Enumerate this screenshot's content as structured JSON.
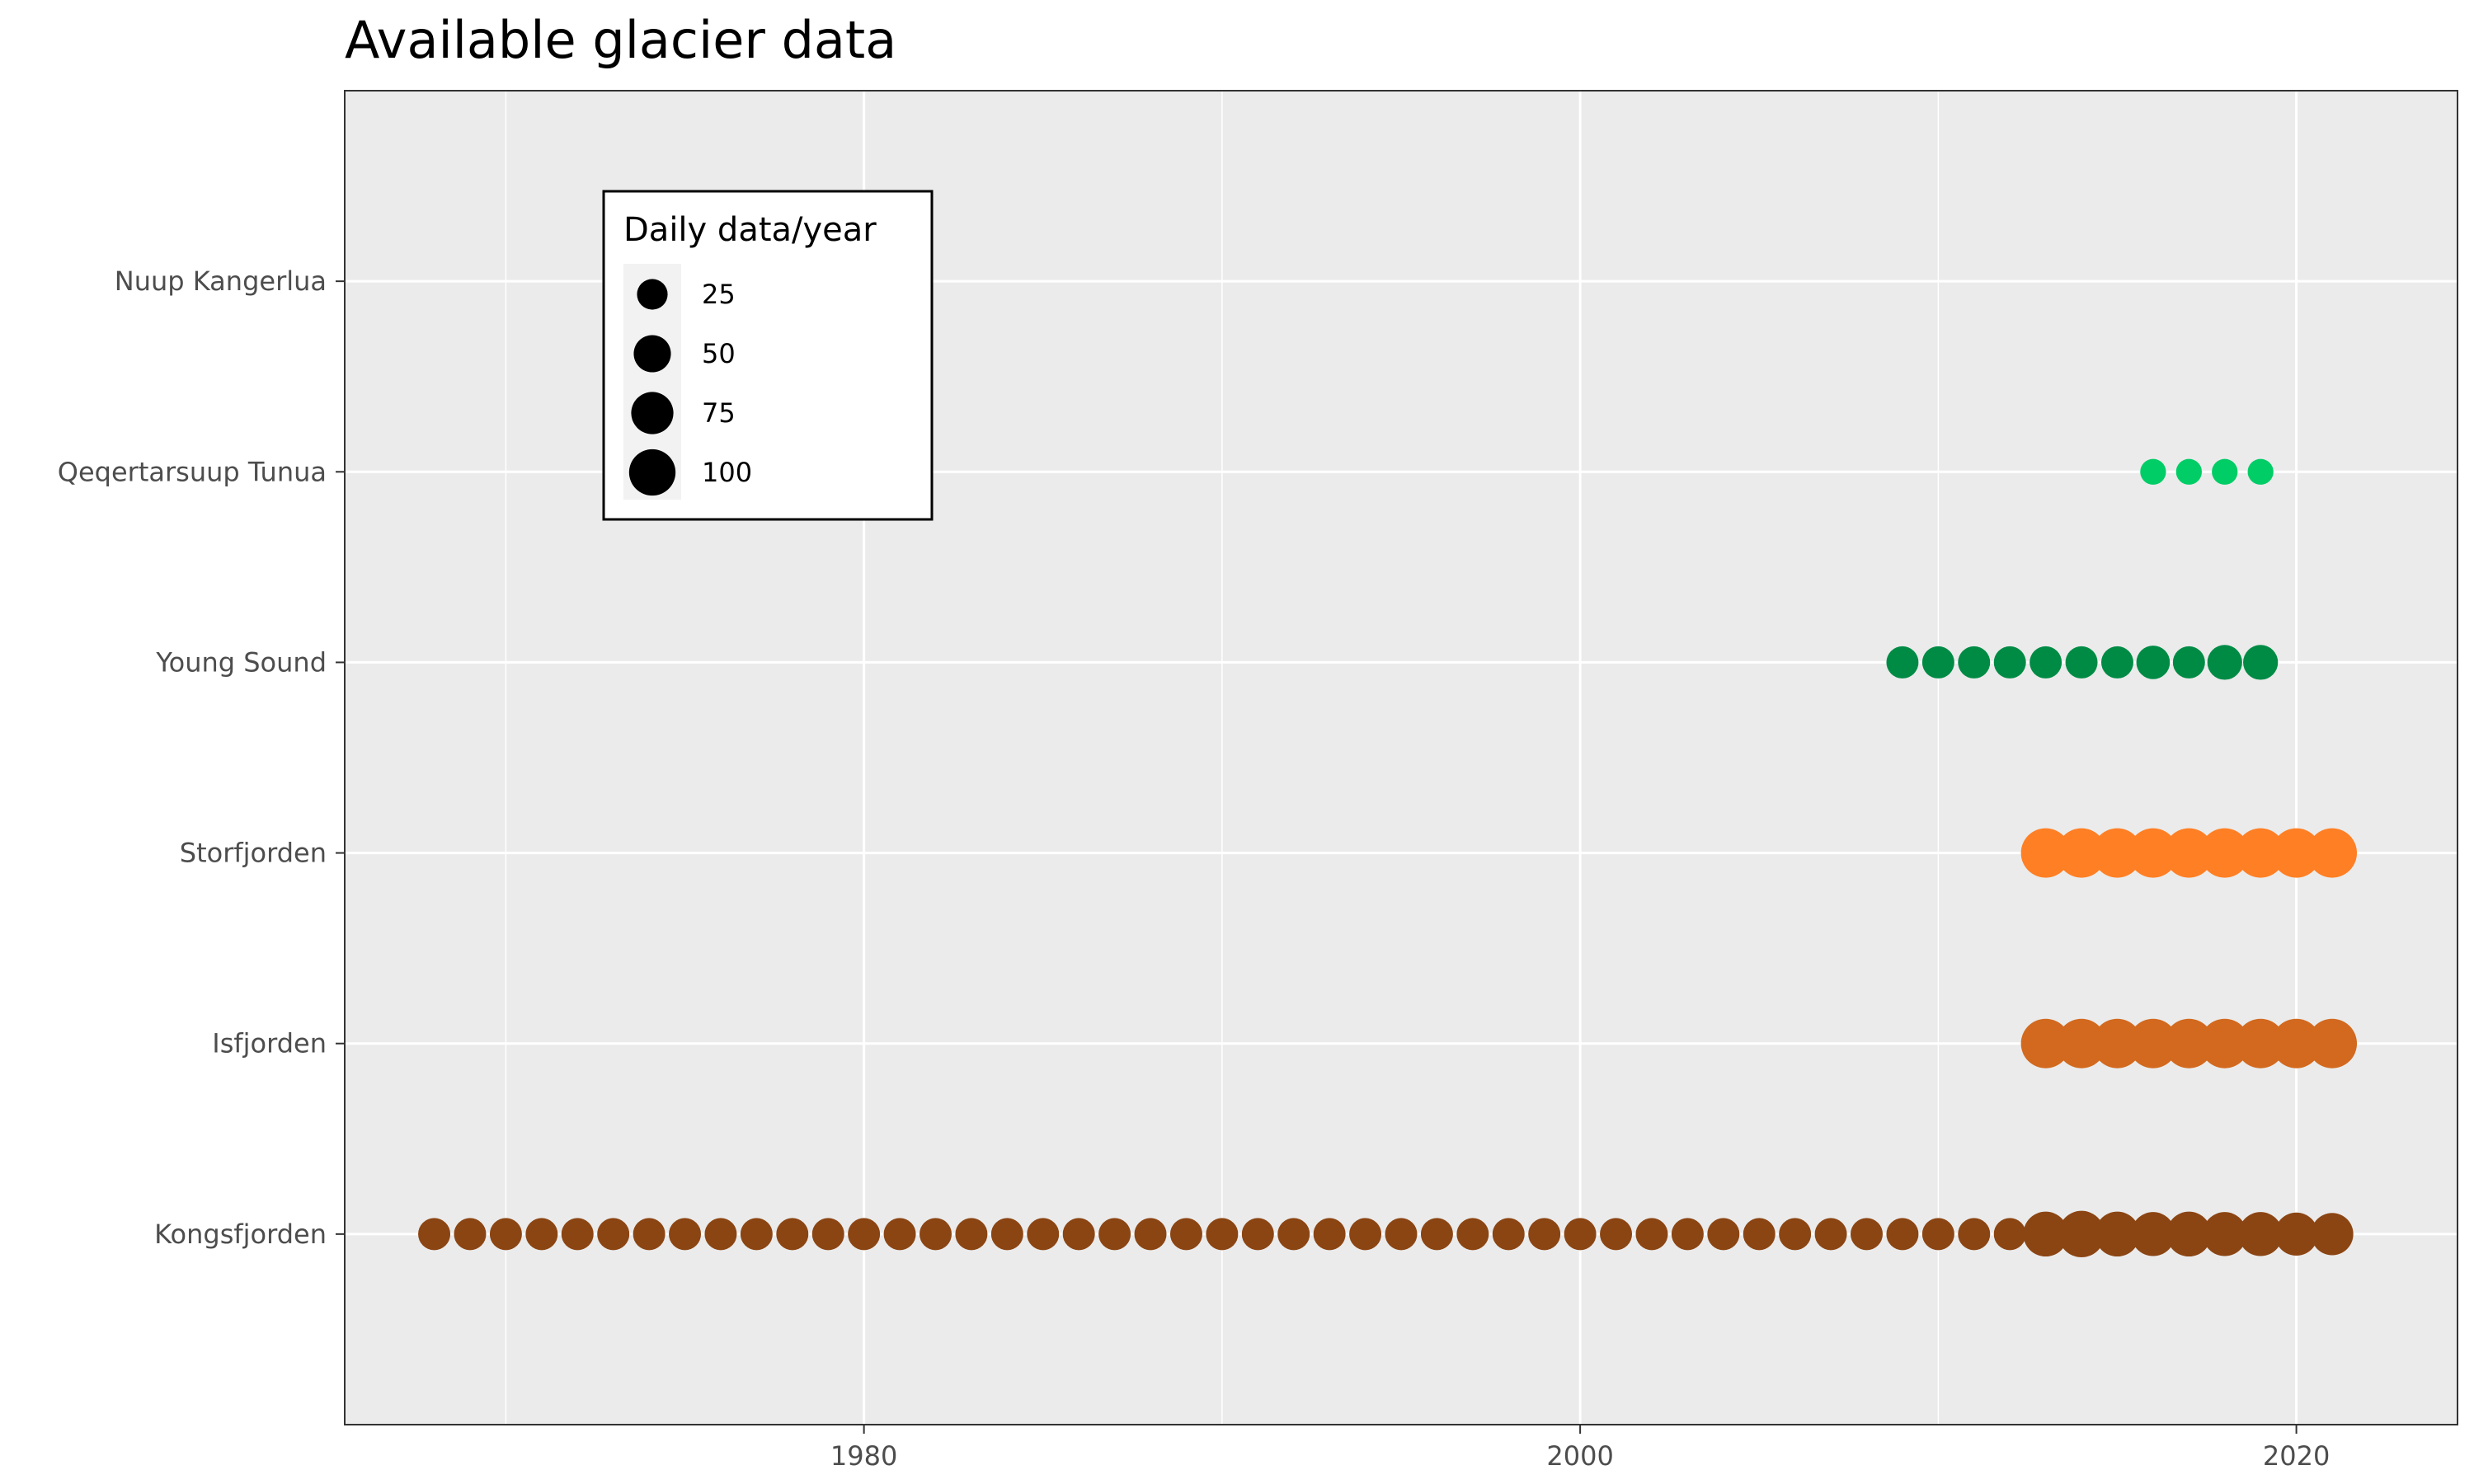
{
  "chart_data": {
    "type": "scatter",
    "title": "Available glacier data",
    "xlabel": "",
    "ylabel": "",
    "xlim": [
      1965.5,
      2024.5
    ],
    "x_ticks": [
      1980,
      2000,
      2020
    ],
    "x_minor_ticks": [
      1970,
      1990,
      2010
    ],
    "grid": true,
    "categories": [
      "Kongsfjorden",
      "Isfjorden",
      "Storfjorden",
      "Young Sound",
      "Qeqertarsuup Tunua",
      "Nuup Kangerlua"
    ],
    "size_legend": {
      "title": "Daily data/year",
      "placement": "top-left",
      "breaks": [
        25,
        50,
        75,
        100
      ]
    },
    "series": [
      {
        "site": "Kongsfjorden",
        "color": "#8b4513",
        "points": [
          [
            1968,
            30
          ],
          [
            1969,
            30
          ],
          [
            1970,
            30
          ],
          [
            1971,
            30
          ],
          [
            1972,
            30
          ],
          [
            1973,
            30
          ],
          [
            1974,
            30
          ],
          [
            1975,
            30
          ],
          [
            1976,
            30
          ],
          [
            1977,
            30
          ],
          [
            1978,
            30
          ],
          [
            1979,
            30
          ],
          [
            1980,
            30
          ],
          [
            1981,
            30
          ],
          [
            1982,
            30
          ],
          [
            1983,
            30
          ],
          [
            1984,
            30
          ],
          [
            1985,
            30
          ],
          [
            1986,
            30
          ],
          [
            1987,
            30
          ],
          [
            1988,
            30
          ],
          [
            1989,
            30
          ],
          [
            1990,
            30
          ],
          [
            1991,
            30
          ],
          [
            1992,
            30
          ],
          [
            1993,
            30
          ],
          [
            1994,
            30
          ],
          [
            1995,
            30
          ],
          [
            1996,
            30
          ],
          [
            1997,
            30
          ],
          [
            1998,
            30
          ],
          [
            1999,
            30
          ],
          [
            2000,
            30
          ],
          [
            2001,
            30
          ],
          [
            2002,
            30
          ],
          [
            2003,
            30
          ],
          [
            2004,
            30
          ],
          [
            2005,
            30
          ],
          [
            2006,
            30
          ],
          [
            2007,
            30
          ],
          [
            2008,
            30
          ],
          [
            2009,
            30
          ],
          [
            2010,
            30
          ],
          [
            2011,
            30
          ],
          [
            2012,
            30
          ],
          [
            2013,
            90
          ],
          [
            2014,
            100
          ],
          [
            2015,
            90
          ],
          [
            2016,
            85
          ],
          [
            2017,
            90
          ],
          [
            2018,
            85
          ],
          [
            2019,
            85
          ],
          [
            2020,
            80
          ],
          [
            2021,
            75
          ]
        ]
      },
      {
        "site": "Isfjorden",
        "color": "#d2691e",
        "points": [
          [
            2013,
            120
          ],
          [
            2014,
            120
          ],
          [
            2015,
            120
          ],
          [
            2016,
            120
          ],
          [
            2017,
            120
          ],
          [
            2018,
            120
          ],
          [
            2019,
            120
          ],
          [
            2020,
            120
          ],
          [
            2021,
            120
          ]
        ]
      },
      {
        "site": "Storfjorden",
        "color": "#ff7f24",
        "points": [
          [
            2013,
            120
          ],
          [
            2014,
            120
          ],
          [
            2015,
            120
          ],
          [
            2016,
            120
          ],
          [
            2017,
            120
          ],
          [
            2018,
            120
          ],
          [
            2019,
            120
          ],
          [
            2020,
            120
          ],
          [
            2021,
            120
          ]
        ]
      },
      {
        "site": "Young Sound",
        "color": "#008b45",
        "points": [
          [
            2009,
            30
          ],
          [
            2010,
            30
          ],
          [
            2011,
            30
          ],
          [
            2012,
            30
          ],
          [
            2013,
            30
          ],
          [
            2014,
            30
          ],
          [
            2015,
            30
          ],
          [
            2016,
            35
          ],
          [
            2017,
            30
          ],
          [
            2018,
            40
          ],
          [
            2019,
            40
          ]
        ]
      },
      {
        "site": "Qeqertarsuup Tunua",
        "color": "#00cd66",
        "points": [
          [
            2016,
            12
          ],
          [
            2017,
            12
          ],
          [
            2018,
            12
          ],
          [
            2019,
            12
          ]
        ]
      },
      {
        "site": "Nuup Kangerlua",
        "color": "#00ee76",
        "points": []
      }
    ]
  }
}
